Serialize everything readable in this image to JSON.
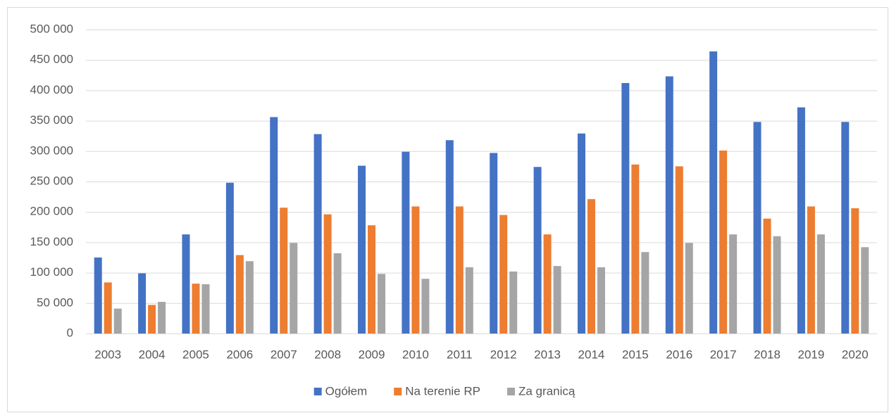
{
  "chart_data": {
    "type": "bar",
    "categories": [
      "2003",
      "2004",
      "2005",
      "2006",
      "2007",
      "2008",
      "2009",
      "2010",
      "2011",
      "2012",
      "2013",
      "2014",
      "2015",
      "2016",
      "2017",
      "2018",
      "2019",
      "2020"
    ],
    "series": [
      {
        "name": "Ogółem",
        "color": "#4472c4",
        "values": [
          125000,
          99000,
          163000,
          248000,
          356000,
          328000,
          276000,
          299000,
          318000,
          297000,
          274000,
          329000,
          412000,
          423000,
          464000,
          348000,
          372000,
          348000
        ]
      },
      {
        "name": "Na terenie RP",
        "color": "#ed7d31",
        "values": [
          84000,
          47000,
          82000,
          129000,
          207000,
          196000,
          178000,
          209000,
          209000,
          195000,
          163000,
          221000,
          278000,
          275000,
          301000,
          189000,
          209000,
          206000
        ]
      },
      {
        "name": "Za granicą",
        "color": "#a5a5a5",
        "values": [
          41000,
          52000,
          81000,
          119000,
          149000,
          132000,
          98000,
          90000,
          109000,
          102000,
          111000,
          109000,
          134000,
          149000,
          163000,
          160000,
          163000,
          142000
        ]
      }
    ],
    "ylim": [
      0,
      500000
    ],
    "yticks": [
      0,
      {
        "value": 50000,
        "label": "50 000"
      },
      {
        "value": 100000,
        "label": "100 000"
      },
      {
        "value": 150000,
        "label": "150 000"
      },
      {
        "value": 200000,
        "label": "200 000"
      },
      {
        "value": 250000,
        "label": "250 000"
      },
      {
        "value": 300000,
        "label": "300 000"
      },
      {
        "value": 350000,
        "label": "350 000"
      },
      {
        "value": 400000,
        "label": "400 000"
      },
      {
        "value": 450000,
        "label": "450 000"
      },
      {
        "value": 500000,
        "label": "500 000"
      }
    ],
    "grid": true,
    "legend": "bottom"
  }
}
